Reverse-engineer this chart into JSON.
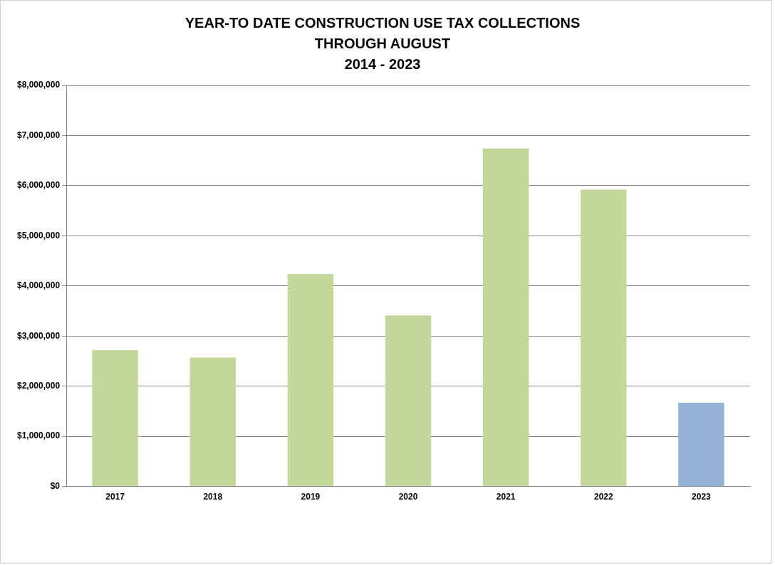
{
  "chart_data": {
    "type": "bar",
    "title": "YEAR-TO DATE CONSTRUCTION USE TAX COLLECTIONS\nTHROUGH AUGUST\n2014 - 2023",
    "categories": [
      "2017",
      "2018",
      "2019",
      "2020",
      "2021",
      "2022",
      "2023"
    ],
    "values": [
      2720000,
      2570000,
      4240000,
      3410000,
      6740000,
      5920000,
      1670000
    ],
    "colors": [
      "#c4d79b",
      "#c4d79b",
      "#c4d79b",
      "#c4d79b",
      "#c4d79b",
      "#c4d79b",
      "#95b3d7"
    ],
    "ylim": [
      0,
      8000000
    ],
    "yticks": [
      {
        "value": 0,
        "label": "$0"
      },
      {
        "value": 1000000,
        "label": "$1,000,000"
      },
      {
        "value": 2000000,
        "label": "$2,000,000"
      },
      {
        "value": 3000000,
        "label": "$3,000,000"
      },
      {
        "value": 4000000,
        "label": "$4,000,000"
      },
      {
        "value": 5000000,
        "label": "$5,000,000"
      },
      {
        "value": 6000000,
        "label": "$6,000,000"
      },
      {
        "value": 7000000,
        "label": "$7,000,000"
      },
      {
        "value": 8000000,
        "label": "$8,000,000"
      }
    ],
    "grid": "y",
    "legend": false
  }
}
